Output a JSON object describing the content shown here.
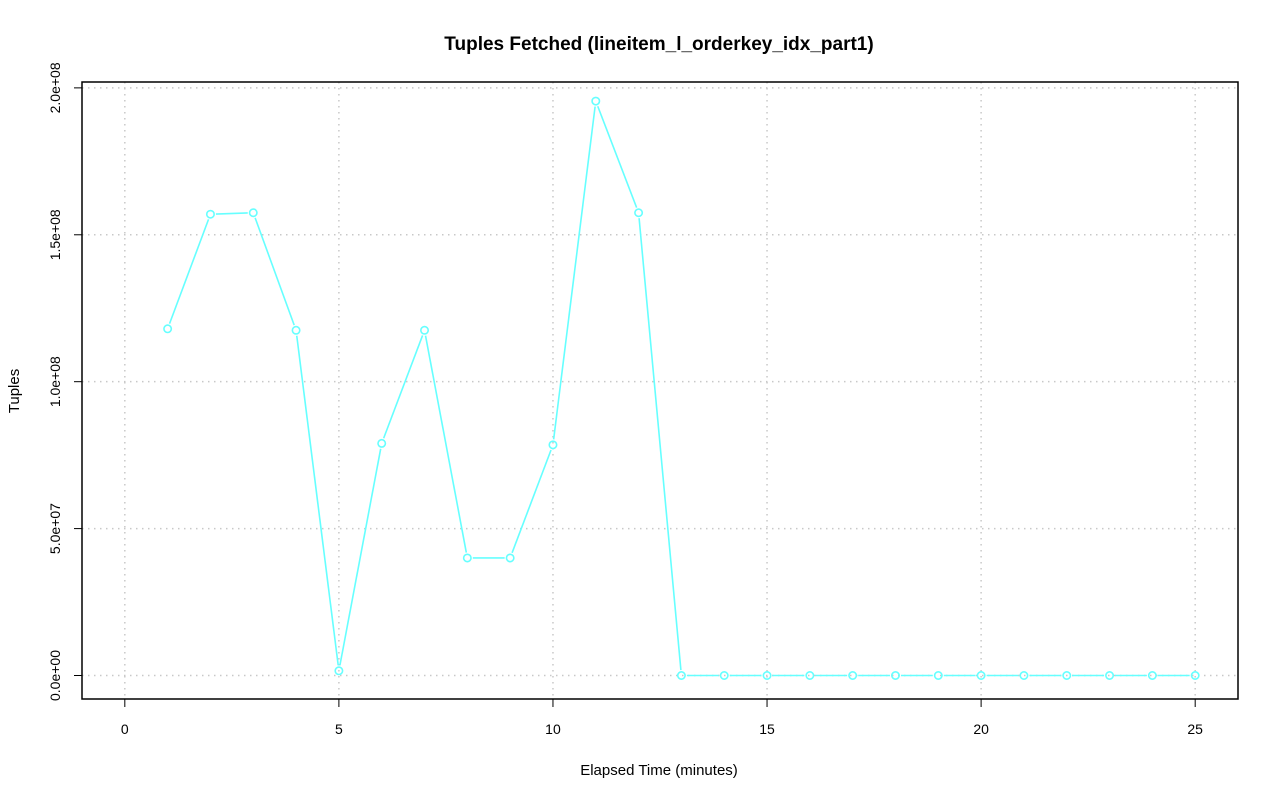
{
  "chart_data": {
    "type": "line",
    "title": "Tuples Fetched (lineitem_l_orderkey_idx_part1)",
    "xlabel": "Elapsed Time (minutes)",
    "ylabel": "Tuples",
    "xlim": [
      -1,
      26
    ],
    "ylim": [
      -8000000,
      202000000
    ],
    "x_ticks": [
      0,
      5,
      10,
      15,
      20,
      25
    ],
    "x_tick_labels": [
      "0",
      "5",
      "10",
      "15",
      "20",
      "25"
    ],
    "y_ticks": [
      0,
      50000000,
      100000000,
      150000000,
      200000000
    ],
    "y_tick_labels": [
      "0.0e+00",
      "5.0e+07",
      "1.0e+08",
      "1.5e+08",
      "2.0e+08"
    ],
    "grid": true,
    "series_color": "#66ffff",
    "series": [
      {
        "x": [
          1,
          2,
          3,
          4,
          5,
          6,
          7,
          8,
          9,
          10,
          11,
          12,
          13,
          14,
          15,
          16,
          17,
          18,
          19,
          20,
          21,
          22,
          23,
          24,
          25
        ],
        "values": [
          118000000,
          157000000,
          157500000,
          117500000,
          1600000,
          79000000,
          117500000,
          40000000,
          40000000,
          78500000,
          195500000,
          157500000,
          0,
          0,
          0,
          0,
          0,
          0,
          0,
          0,
          0,
          0,
          0,
          0,
          0
        ]
      }
    ]
  }
}
